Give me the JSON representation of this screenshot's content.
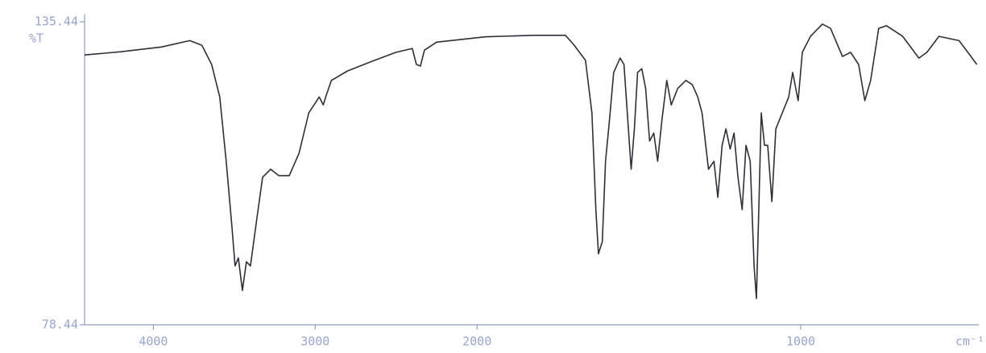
{
  "chart_data": {
    "type": "line",
    "ylabel": "%T",
    "xlabel": "cm⁻¹",
    "x": [
      4425,
      4200,
      3950,
      3775,
      3700,
      3640,
      3590,
      3550,
      3515,
      3495,
      3475,
      3450,
      3425,
      3400,
      3360,
      3325,
      3275,
      3225,
      3160,
      3100,
      3040,
      2975,
      2950,
      2935,
      2900,
      2800,
      2650,
      2500,
      2400,
      2375,
      2350,
      2325,
      2250,
      1975,
      1826,
      1727,
      1702,
      1665,
      1645,
      1633,
      1625,
      1613,
      1603,
      1591,
      1578,
      1558,
      1546,
      1534,
      1524,
      1514,
      1504,
      1491,
      1479,
      1467,
      1454,
      1442,
      1429,
      1414,
      1400,
      1380,
      1355,
      1335,
      1318,
      1305,
      1285,
      1268,
      1256,
      1243,
      1231,
      1218,
      1206,
      1194,
      1181,
      1169,
      1156,
      1144,
      1137,
      1129,
      1122,
      1112,
      1102,
      1089,
      1077,
      1057,
      1037,
      1025,
      1008,
      995,
      970,
      933,
      908,
      871,
      846,
      821,
      802,
      784,
      759,
      735,
      685,
      635,
      610,
      573,
      511,
      474,
      456
    ],
    "values": [
      129.2,
      129.8,
      130.7,
      131.9,
      131.0,
      127.4,
      121.3,
      109.2,
      97.1,
      89.5,
      91.0,
      84.9,
      90.3,
      89.5,
      98.6,
      106.2,
      107.7,
      106.5,
      106.5,
      110.7,
      118.3,
      121.3,
      119.8,
      121.3,
      124.4,
      126.2,
      128.0,
      129.7,
      130.4,
      127.4,
      127.1,
      130.1,
      131.6,
      132.6,
      132.9,
      132.9,
      131.2,
      128.2,
      118.3,
      100.1,
      91.8,
      94.1,
      109.2,
      116.8,
      125.9,
      128.6,
      127.4,
      116.8,
      107.7,
      115.3,
      125.9,
      126.6,
      122.9,
      113.0,
      114.5,
      109.2,
      116.8,
      124.4,
      119.8,
      122.9,
      124.4,
      123.6,
      121.3,
      118.3,
      107.7,
      109.2,
      102.4,
      112.2,
      115.3,
      111.5,
      114.5,
      106.2,
      100.1,
      112.2,
      109.2,
      89.5,
      83.4,
      101.6,
      118.3,
      112.2,
      112.2,
      101.6,
      115.3,
      118.3,
      121.3,
      125.9,
      120.6,
      129.7,
      132.7,
      135.0,
      134.2,
      128.9,
      129.7,
      127.4,
      120.6,
      124.4,
      134.2,
      134.7,
      132.7,
      128.6,
      129.7,
      132.7,
      131.9,
      128.9,
      127.4
    ],
    "color": "#2f2f3a",
    "xlim": [
      4425,
      450
    ],
    "xticks": [
      4000,
      3000,
      2000,
      1000
    ],
    "xbreak": 2000,
    "ylim": [
      78.44,
      135.44
    ],
    "yticks": [
      78.44,
      135.44
    ]
  }
}
